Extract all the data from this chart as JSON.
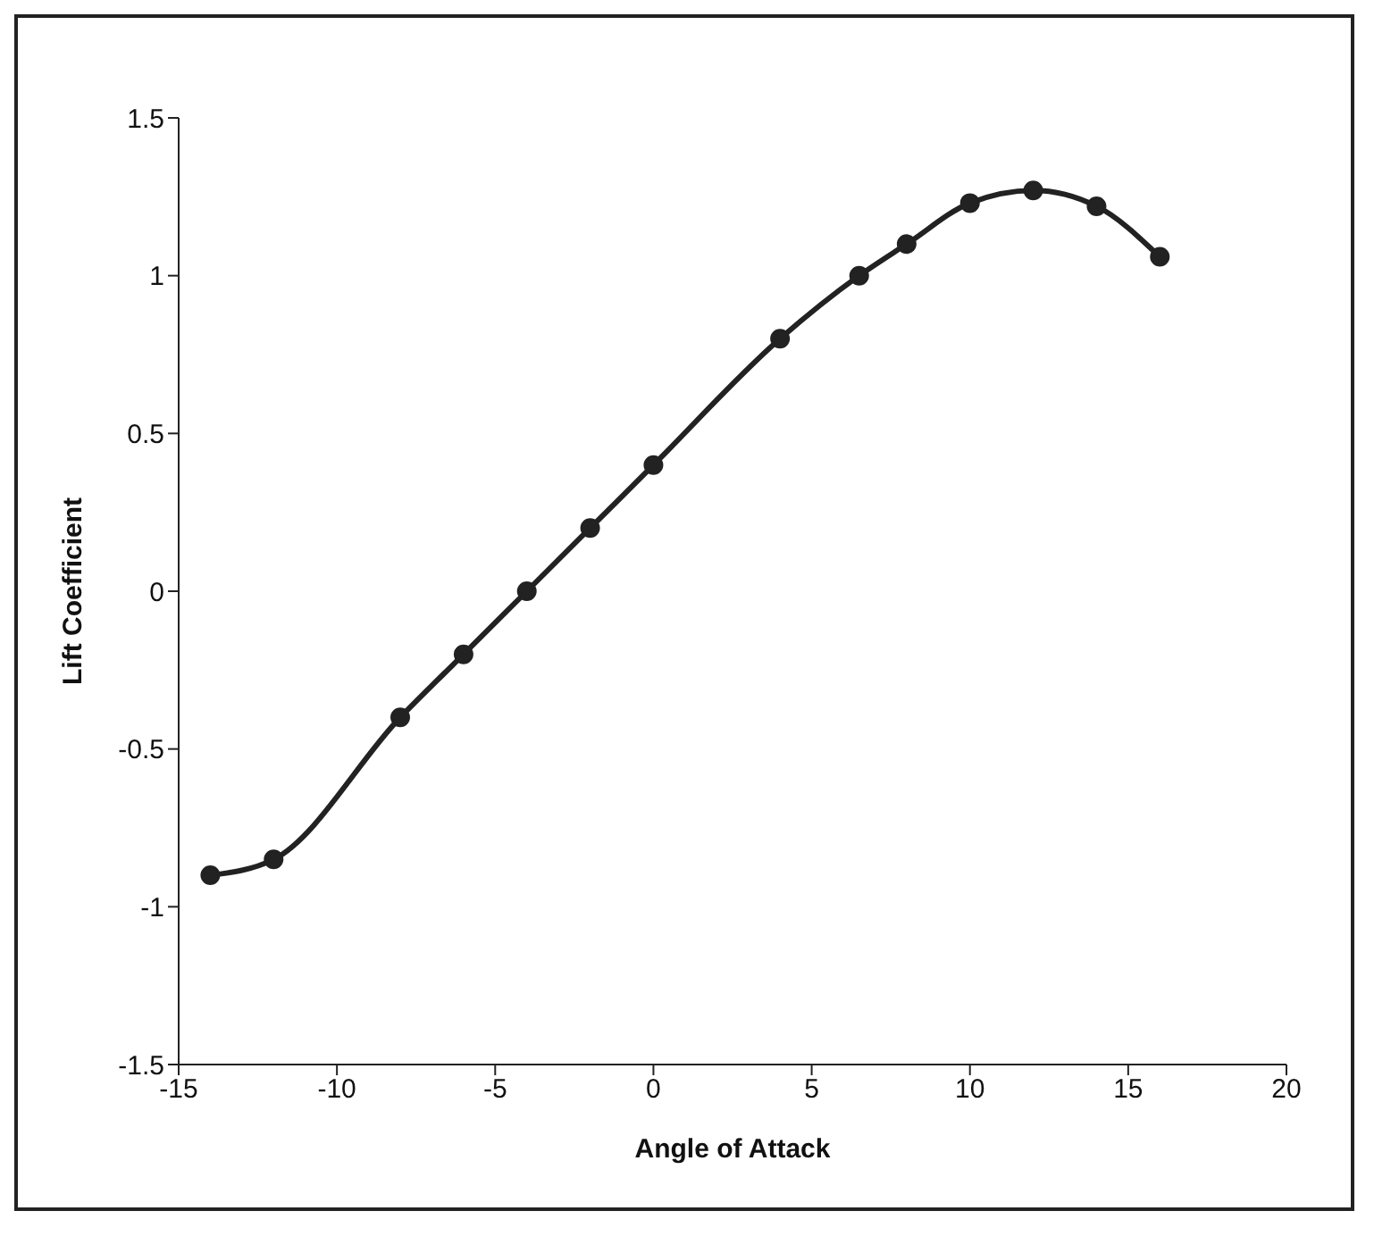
{
  "chart_data": {
    "type": "line",
    "xlabel": "Angle of Attack",
    "ylabel": "Lift Coefficient",
    "x": [
      -14,
      -12,
      -8,
      -6,
      -4,
      -2,
      0,
      4,
      6.5,
      8,
      10,
      12,
      14,
      16
    ],
    "series": [
      {
        "color": "#222222",
        "values": [
          -0.9,
          -0.85,
          -0.4,
          -0.2,
          0,
          0.2,
          0.4,
          0.8,
          1.0,
          1.1,
          1.23,
          1.27,
          1.22,
          1.06
        ]
      }
    ],
    "xlim": [
      -15,
      20
    ],
    "xticks": [
      -15,
      -10,
      -5,
      0,
      5,
      10,
      15,
      20
    ],
    "ylim": [
      -1.5,
      1.5
    ],
    "yticks": [
      -1.5,
      -1,
      -0.5,
      0,
      0.5,
      1,
      1.5
    ],
    "marker": "circle",
    "line_style": "solid"
  }
}
